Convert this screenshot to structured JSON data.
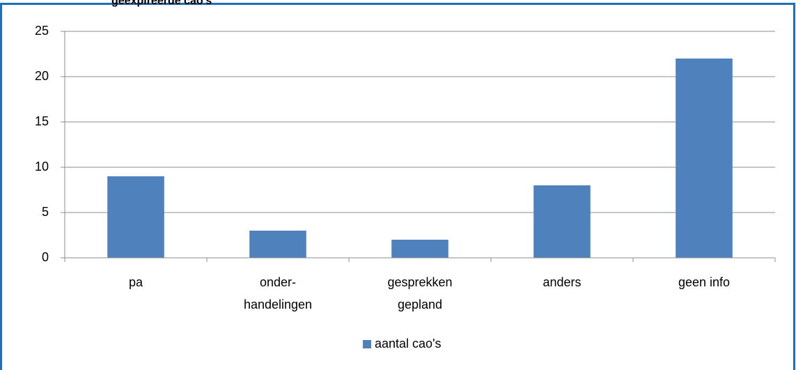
{
  "chart_data": {
    "type": "bar",
    "title": "geexpireerde cao's",
    "categories": [
      "pa",
      "onder-\nhandelingen",
      "gesprekken\ngepland",
      "anders",
      "geen info"
    ],
    "series": [
      {
        "name": "aantal cao's",
        "color": "#4f81bd",
        "values": [
          9,
          3,
          2,
          8,
          22
        ]
      }
    ],
    "ylim": [
      0,
      25
    ],
    "yticks": [
      0,
      5,
      10,
      15,
      20,
      25
    ],
    "grid": true,
    "legend": "bottom"
  }
}
